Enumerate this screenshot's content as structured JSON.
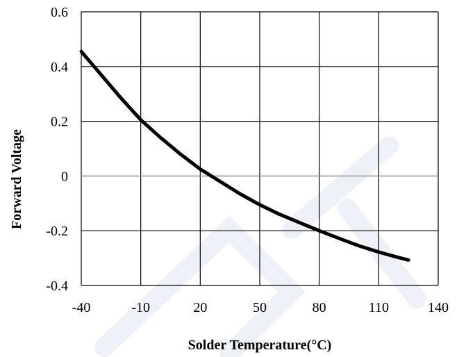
{
  "chart_data": {
    "type": "line",
    "title": "",
    "xlabel": "Solder Temperature(°C)",
    "ylabel": "Forward Voltage",
    "xlim": [
      -40,
      140
    ],
    "ylim": [
      -0.4,
      0.6
    ],
    "x_ticks": [
      -40,
      -10,
      20,
      50,
      80,
      110,
      140
    ],
    "x_tick_labels": [
      "-40",
      "-10",
      "20",
      "50",
      "80",
      "110",
      "140"
    ],
    "y_ticks": [
      -0.4,
      -0.2,
      0,
      0.2,
      0.4,
      0.6
    ],
    "y_tick_labels": [
      "-0.4",
      "-0.2",
      "0",
      "0.2",
      "0.4",
      "0.6"
    ],
    "grid": true,
    "legend": "none",
    "series": [
      {
        "color": "#000000",
        "x": [
          -40,
          -30,
          -20,
          -10,
          0,
          10,
          20,
          30,
          40,
          50,
          60,
          70,
          80,
          90,
          100,
          110,
          120,
          125
        ],
        "y": [
          0.455,
          0.37,
          0.285,
          0.205,
          0.14,
          0.08,
          0.025,
          -0.02,
          -0.065,
          -0.105,
          -0.14,
          -0.17,
          -0.2,
          -0.228,
          -0.255,
          -0.278,
          -0.298,
          -0.307
        ]
      }
    ]
  }
}
